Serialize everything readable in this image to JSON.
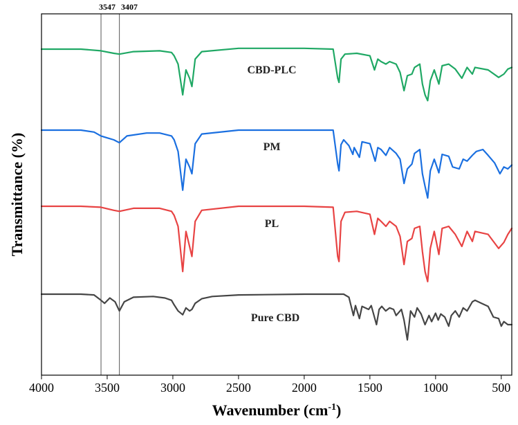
{
  "chart_data": {
    "type": "line",
    "title": "",
    "xlabel": "Wavenumber (cm",
    "xlabel_sup": "-1",
    "xlabel_close": ")",
    "ylabel": "Transmittance (%)",
    "xlim": [
      4000,
      420
    ],
    "x_reversed": true,
    "x_ticks": [
      4000,
      3500,
      3000,
      2500,
      2000,
      1500,
      1000,
      500
    ],
    "x_tick_labels": [
      "4000",
      "3500",
      "3000",
      "2500",
      "2000",
      "1500",
      "1000",
      "500"
    ],
    "y_ticks_shown": false,
    "grid": false,
    "annotations": [
      {
        "text": "3547",
        "x": 3547
      },
      {
        "text": "3407",
        "x": 3407
      }
    ],
    "series": [
      {
        "name": "CBD-PLC",
        "color": "#1fa864",
        "baseline": 0.88,
        "points": [
          [
            4000,
            0
          ],
          [
            3700,
            0
          ],
          [
            3547,
            -0.02
          ],
          [
            3450,
            -0.05
          ],
          [
            3407,
            -0.06
          ],
          [
            3300,
            -0.03
          ],
          [
            3100,
            -0.02
          ],
          [
            3010,
            -0.04
          ],
          [
            2990,
            -0.08
          ],
          [
            2960,
            -0.18
          ],
          [
            2925,
            -0.55
          ],
          [
            2900,
            -0.25
          ],
          [
            2873,
            -0.35
          ],
          [
            2855,
            -0.45
          ],
          [
            2830,
            -0.12
          ],
          [
            2780,
            -0.03
          ],
          [
            2500,
            0.01
          ],
          [
            2000,
            0.01
          ],
          [
            1780,
            0.0
          ],
          [
            1745,
            -0.35
          ],
          [
            1735,
            -0.4
          ],
          [
            1720,
            -0.12
          ],
          [
            1690,
            -0.06
          ],
          [
            1600,
            -0.05
          ],
          [
            1500,
            -0.08
          ],
          [
            1465,
            -0.25
          ],
          [
            1440,
            -0.12
          ],
          [
            1415,
            -0.15
          ],
          [
            1378,
            -0.18
          ],
          [
            1350,
            -0.15
          ],
          [
            1300,
            -0.18
          ],
          [
            1270,
            -0.28
          ],
          [
            1240,
            -0.5
          ],
          [
            1215,
            -0.32
          ],
          [
            1180,
            -0.3
          ],
          [
            1160,
            -0.22
          ],
          [
            1120,
            -0.18
          ],
          [
            1100,
            -0.42
          ],
          [
            1080,
            -0.55
          ],
          [
            1060,
            -0.62
          ],
          [
            1040,
            -0.38
          ],
          [
            1010,
            -0.25
          ],
          [
            975,
            -0.42
          ],
          [
            950,
            -0.2
          ],
          [
            900,
            -0.18
          ],
          [
            850,
            -0.24
          ],
          [
            800,
            -0.35
          ],
          [
            760,
            -0.22
          ],
          [
            720,
            -0.3
          ],
          [
            700,
            -0.22
          ],
          [
            600,
            -0.25
          ],
          [
            520,
            -0.34
          ],
          [
            480,
            -0.3
          ],
          [
            450,
            -0.24
          ],
          [
            420,
            -0.22
          ]
        ]
      },
      {
        "name": "PM",
        "color": "#1a6fe0",
        "baseline": 0.9,
        "points": [
          [
            4000,
            0
          ],
          [
            3700,
            0
          ],
          [
            3600,
            -0.02
          ],
          [
            3547,
            -0.06
          ],
          [
            3500,
            -0.08
          ],
          [
            3450,
            -0.1
          ],
          [
            3407,
            -0.13
          ],
          [
            3350,
            -0.06
          ],
          [
            3200,
            -0.03
          ],
          [
            3100,
            -0.03
          ],
          [
            3010,
            -0.06
          ],
          [
            2990,
            -0.1
          ],
          [
            2960,
            -0.22
          ],
          [
            2925,
            -0.62
          ],
          [
            2900,
            -0.3
          ],
          [
            2873,
            -0.38
          ],
          [
            2855,
            -0.45
          ],
          [
            2830,
            -0.14
          ],
          [
            2780,
            -0.04
          ],
          [
            2500,
            0.0
          ],
          [
            2000,
            0.0
          ],
          [
            1780,
            0.0
          ],
          [
            1745,
            -0.35
          ],
          [
            1735,
            -0.42
          ],
          [
            1720,
            -0.15
          ],
          [
            1700,
            -0.1
          ],
          [
            1660,
            -0.16
          ],
          [
            1630,
            -0.25
          ],
          [
            1620,
            -0.18
          ],
          [
            1580,
            -0.28
          ],
          [
            1560,
            -0.12
          ],
          [
            1500,
            -0.14
          ],
          [
            1460,
            -0.32
          ],
          [
            1440,
            -0.18
          ],
          [
            1415,
            -0.2
          ],
          [
            1378,
            -0.26
          ],
          [
            1350,
            -0.18
          ],
          [
            1300,
            -0.24
          ],
          [
            1270,
            -0.3
          ],
          [
            1240,
            -0.55
          ],
          [
            1215,
            -0.4
          ],
          [
            1180,
            -0.35
          ],
          [
            1160,
            -0.24
          ],
          [
            1120,
            -0.2
          ],
          [
            1100,
            -0.45
          ],
          [
            1080,
            -0.58
          ],
          [
            1060,
            -0.7
          ],
          [
            1040,
            -0.42
          ],
          [
            1010,
            -0.3
          ],
          [
            975,
            -0.44
          ],
          [
            950,
            -0.25
          ],
          [
            900,
            -0.27
          ],
          [
            870,
            -0.38
          ],
          [
            820,
            -0.4
          ],
          [
            790,
            -0.3
          ],
          [
            760,
            -0.32
          ],
          [
            720,
            -0.26
          ],
          [
            690,
            -0.22
          ],
          [
            640,
            -0.2
          ],
          [
            600,
            -0.26
          ],
          [
            550,
            -0.34
          ],
          [
            510,
            -0.45
          ],
          [
            480,
            -0.38
          ],
          [
            450,
            -0.4
          ],
          [
            420,
            -0.36
          ]
        ]
      },
      {
        "name": "PL",
        "color": "#e84343",
        "baseline": 0.92,
        "points": [
          [
            4000,
            0
          ],
          [
            3700,
            0
          ],
          [
            3547,
            -0.01
          ],
          [
            3450,
            -0.04
          ],
          [
            3407,
            -0.05
          ],
          [
            3300,
            -0.02
          ],
          [
            3100,
            -0.02
          ],
          [
            3010,
            -0.05
          ],
          [
            2990,
            -0.09
          ],
          [
            2960,
            -0.2
          ],
          [
            2925,
            -0.65
          ],
          [
            2900,
            -0.25
          ],
          [
            2873,
            -0.4
          ],
          [
            2855,
            -0.5
          ],
          [
            2830,
            -0.15
          ],
          [
            2780,
            -0.04
          ],
          [
            2500,
            0.0
          ],
          [
            2000,
            0.0
          ],
          [
            1780,
            -0.01
          ],
          [
            1745,
            -0.5
          ],
          [
            1735,
            -0.55
          ],
          [
            1720,
            -0.15
          ],
          [
            1690,
            -0.06
          ],
          [
            1600,
            -0.05
          ],
          [
            1500,
            -0.08
          ],
          [
            1465,
            -0.28
          ],
          [
            1440,
            -0.12
          ],
          [
            1415,
            -0.15
          ],
          [
            1378,
            -0.2
          ],
          [
            1350,
            -0.15
          ],
          [
            1300,
            -0.2
          ],
          [
            1270,
            -0.3
          ],
          [
            1240,
            -0.58
          ],
          [
            1215,
            -0.35
          ],
          [
            1180,
            -0.32
          ],
          [
            1160,
            -0.22
          ],
          [
            1120,
            -0.2
          ],
          [
            1100,
            -0.45
          ],
          [
            1080,
            -0.65
          ],
          [
            1060,
            -0.75
          ],
          [
            1040,
            -0.42
          ],
          [
            1010,
            -0.25
          ],
          [
            975,
            -0.48
          ],
          [
            950,
            -0.22
          ],
          [
            900,
            -0.2
          ],
          [
            850,
            -0.28
          ],
          [
            800,
            -0.4
          ],
          [
            760,
            -0.25
          ],
          [
            720,
            -0.35
          ],
          [
            700,
            -0.25
          ],
          [
            600,
            -0.28
          ],
          [
            520,
            -0.42
          ],
          [
            480,
            -0.36
          ],
          [
            450,
            -0.28
          ],
          [
            420,
            -0.22
          ]
        ]
      },
      {
        "name": "Pure CBD",
        "color": "#454545",
        "baseline": 0.92,
        "points": [
          [
            4000,
            0
          ],
          [
            3700,
            0
          ],
          [
            3600,
            -0.01
          ],
          [
            3547,
            -0.08
          ],
          [
            3520,
            -0.12
          ],
          [
            3480,
            -0.05
          ],
          [
            3440,
            -0.1
          ],
          [
            3407,
            -0.22
          ],
          [
            3370,
            -0.1
          ],
          [
            3300,
            -0.04
          ],
          [
            3150,
            -0.03
          ],
          [
            3060,
            -0.05
          ],
          [
            3010,
            -0.08
          ],
          [
            2990,
            -0.14
          ],
          [
            2960,
            -0.22
          ],
          [
            2925,
            -0.27
          ],
          [
            2900,
            -0.18
          ],
          [
            2873,
            -0.22
          ],
          [
            2855,
            -0.2
          ],
          [
            2830,
            -0.12
          ],
          [
            2780,
            -0.06
          ],
          [
            2700,
            -0.03
          ],
          [
            2500,
            -0.01
          ],
          [
            2000,
            0.0
          ],
          [
            1700,
            0.0
          ],
          [
            1660,
            -0.04
          ],
          [
            1625,
            -0.28
          ],
          [
            1610,
            -0.15
          ],
          [
            1580,
            -0.32
          ],
          [
            1560,
            -0.16
          ],
          [
            1510,
            -0.2
          ],
          [
            1490,
            -0.15
          ],
          [
            1450,
            -0.4
          ],
          [
            1430,
            -0.2
          ],
          [
            1410,
            -0.16
          ],
          [
            1380,
            -0.22
          ],
          [
            1350,
            -0.18
          ],
          [
            1320,
            -0.2
          ],
          [
            1300,
            -0.28
          ],
          [
            1260,
            -0.2
          ],
          [
            1240,
            -0.34
          ],
          [
            1215,
            -0.6
          ],
          [
            1190,
            -0.22
          ],
          [
            1160,
            -0.3
          ],
          [
            1140,
            -0.18
          ],
          [
            1110,
            -0.26
          ],
          [
            1080,
            -0.4
          ],
          [
            1050,
            -0.28
          ],
          [
            1030,
            -0.36
          ],
          [
            1000,
            -0.25
          ],
          [
            980,
            -0.34
          ],
          [
            960,
            -0.26
          ],
          [
            930,
            -0.3
          ],
          [
            900,
            -0.42
          ],
          [
            880,
            -0.28
          ],
          [
            850,
            -0.22
          ],
          [
            820,
            -0.3
          ],
          [
            790,
            -0.18
          ],
          [
            760,
            -0.22
          ],
          [
            720,
            -0.1
          ],
          [
            700,
            -0.08
          ],
          [
            650,
            -0.12
          ],
          [
            600,
            -0.16
          ],
          [
            560,
            -0.3
          ],
          [
            520,
            -0.32
          ],
          [
            500,
            -0.42
          ],
          [
            480,
            -0.36
          ],
          [
            450,
            -0.4
          ],
          [
            420,
            -0.4
          ]
        ]
      }
    ]
  }
}
